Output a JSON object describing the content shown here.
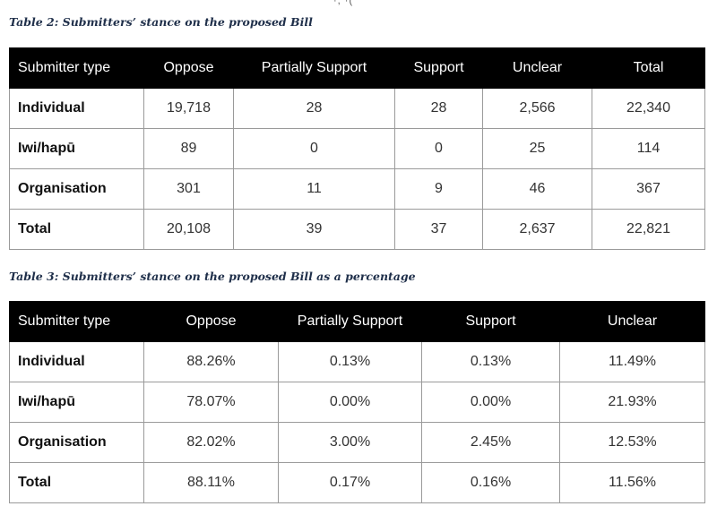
{
  "table2": {
    "caption": "Table 2: Submitters’ stance on the proposed Bill",
    "headers": [
      "Submitter type",
      "Oppose",
      "Partially Support",
      "Support",
      "Unclear",
      "Total"
    ],
    "rows": [
      [
        "Individual",
        "19,718",
        "28",
        "28",
        "2,566",
        "22,340"
      ],
      [
        "Iwi/hapū",
        "89",
        "0",
        "0",
        "25",
        "114"
      ],
      [
        "Organisation",
        "301",
        "11",
        "9",
        "46",
        "367"
      ],
      [
        "Total",
        "20,108",
        "39",
        "37",
        "2,637",
        "22,821"
      ]
    ]
  },
  "table3": {
    "caption": "Table 3: Submitters’ stance on the proposed Bill as a percentage",
    "headers": [
      "Submitter type",
      "Oppose",
      "Partially Support",
      "Support",
      "Unclear"
    ],
    "rows": [
      [
        "Individual",
        "88.26%",
        "0.13%",
        "0.13%",
        "11.49%"
      ],
      [
        "Iwi/hapū",
        "78.07%",
        "0.00%",
        "0.00%",
        "21.93%"
      ],
      [
        "Organisation",
        "82.02%",
        "3.00%",
        "2.45%",
        "12.53%"
      ],
      [
        "Total",
        "88.11%",
        "0.17%",
        "0.16%",
        "11.56%"
      ]
    ]
  }
}
